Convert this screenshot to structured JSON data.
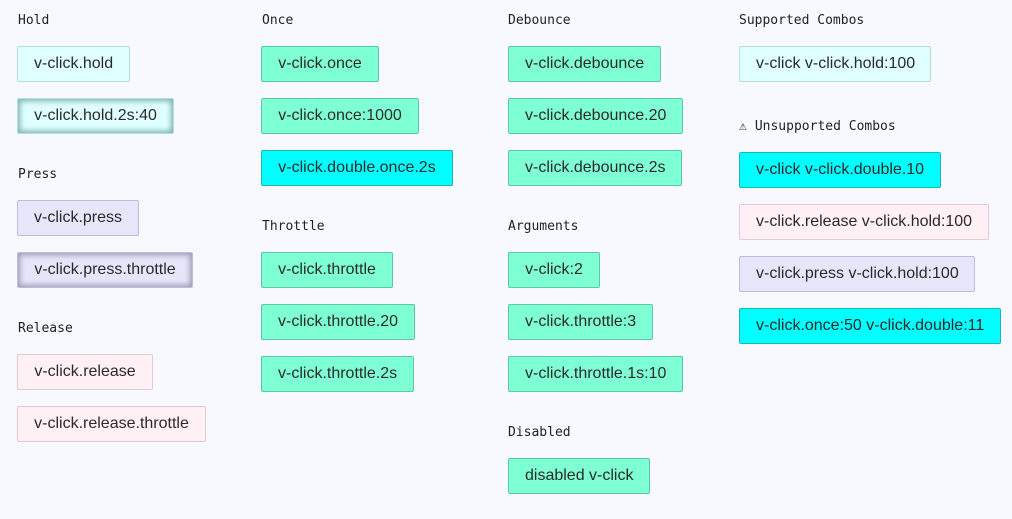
{
  "hold": {
    "heading": "Hold",
    "buttons": [
      "v-click.hold",
      "v-click.hold.2s:40"
    ]
  },
  "press": {
    "heading": "Press",
    "buttons": [
      "v-click.press",
      "v-click.press.throttle"
    ]
  },
  "release": {
    "heading": "Release",
    "buttons": [
      "v-click.release",
      "v-click.release.throttle"
    ]
  },
  "once": {
    "heading": "Once",
    "buttons": [
      "v-click.once",
      "v-click.once:1000",
      "v-click.double.once.2s"
    ]
  },
  "throttle": {
    "heading": "Throttle",
    "buttons": [
      "v-click.throttle",
      "v-click.throttle.20",
      "v-click.throttle.2s"
    ]
  },
  "debounce": {
    "heading": "Debounce",
    "buttons": [
      "v-click.debounce",
      "v-click.debounce.20",
      "v-click.debounce.2s"
    ]
  },
  "arguments": {
    "heading": "Arguments",
    "buttons": [
      "v-click:2",
      "v-click.throttle:3",
      "v-click.throttle.1s:10"
    ]
  },
  "disabled": {
    "heading": "Disabled",
    "buttons": [
      "disabled v-click"
    ]
  },
  "supported": {
    "heading": "Supported Combos",
    "buttons": [
      "v-click v-click.hold:100"
    ]
  },
  "unsupported": {
    "warning_glyph": "⚠",
    "heading": "Unsupported Combos",
    "buttons": [
      "v-click v-click.double.10",
      "v-click.release v-click.hold:100",
      "v-click.press v-click.hold:100",
      "v-click.once:50 v-click.double:11"
    ]
  },
  "colors": {
    "background": "#f8f8ff",
    "lightcyan": "#e0ffff",
    "aquamarine": "#7fffd4",
    "cyan": "#00ffff",
    "lavender": "#e6e6fa",
    "lavenderblush": "#fff0f5"
  },
  "icons": {
    "warning": "warning-icon"
  }
}
